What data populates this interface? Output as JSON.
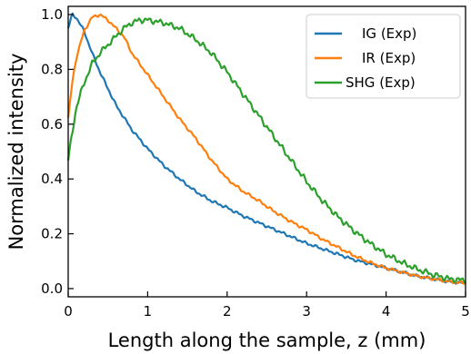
{
  "chart_data": {
    "type": "line",
    "title": "",
    "xlabel": "Length along the sample, z (mm)",
    "ylabel": "Normalized intensity",
    "xlim": [
      0,
      5
    ],
    "ylim": [
      -0.03,
      1.03
    ],
    "xticks": [
      0,
      1,
      2,
      3,
      4,
      5
    ],
    "xtick_labels": [
      "0",
      "1",
      "2",
      "3",
      "4",
      "5"
    ],
    "yticks": [
      0.0,
      0.2,
      0.4,
      0.6,
      0.8,
      1.0
    ],
    "ytick_labels": [
      "0.0",
      "0.2",
      "0.4",
      "0.6",
      "0.8",
      "1.0"
    ],
    "grid": false,
    "legend": "top-right",
    "series": [
      {
        "name": "IG (Exp)",
        "color": "#1f77b4",
        "x": [
          0,
          0.05,
          0.1,
          0.2,
          0.3,
          0.4,
          0.5,
          0.6,
          0.8,
          1.0,
          1.2,
          1.4,
          1.6,
          1.8,
          2.0,
          2.2,
          2.4,
          2.6,
          2.8,
          3.0,
          3.2,
          3.4,
          3.6,
          3.8,
          4.0,
          4.2,
          4.4,
          4.6,
          4.8,
          5.0
        ],
        "y": [
          0.95,
          1.0,
          0.99,
          0.94,
          0.86,
          0.79,
          0.73,
          0.67,
          0.58,
          0.51,
          0.45,
          0.4,
          0.355,
          0.32,
          0.295,
          0.265,
          0.24,
          0.215,
          0.19,
          0.165,
          0.145,
          0.125,
          0.105,
          0.09,
          0.075,
          0.06,
          0.045,
          0.035,
          0.025,
          0.02
        ]
      },
      {
        "name": "IR (Exp)",
        "color": "#ff7f0e",
        "x": [
          0,
          0.05,
          0.1,
          0.2,
          0.3,
          0.4,
          0.5,
          0.6,
          0.7,
          0.8,
          1.0,
          1.2,
          1.4,
          1.6,
          1.8,
          2.0,
          2.2,
          2.4,
          2.6,
          2.8,
          3.0,
          3.2,
          3.4,
          3.6,
          3.8,
          4.0,
          4.2,
          4.4,
          4.6,
          4.8,
          5.0
        ],
        "y": [
          0.62,
          0.75,
          0.84,
          0.94,
          0.99,
          1.0,
          0.98,
          0.95,
          0.92,
          0.86,
          0.78,
          0.7,
          0.62,
          0.55,
          0.47,
          0.4,
          0.355,
          0.32,
          0.28,
          0.245,
          0.215,
          0.18,
          0.15,
          0.12,
          0.095,
          0.075,
          0.06,
          0.045,
          0.035,
          0.025,
          0.02
        ]
      },
      {
        "name": "SHG (Exp)",
        "color": "#2ca02c",
        "x": [
          0,
          0.1,
          0.2,
          0.3,
          0.4,
          0.5,
          0.6,
          0.7,
          0.8,
          0.9,
          1.0,
          1.2,
          1.4,
          1.6,
          1.8,
          2.0,
          2.2,
          2.4,
          2.6,
          2.8,
          3.0,
          3.2,
          3.4,
          3.6,
          3.8,
          4.0,
          4.2,
          4.4,
          4.6,
          4.8,
          5.0
        ],
        "y": [
          0.47,
          0.66,
          0.75,
          0.82,
          0.86,
          0.89,
          0.92,
          0.95,
          0.97,
          0.98,
          0.98,
          0.97,
          0.95,
          0.91,
          0.86,
          0.79,
          0.71,
          0.63,
          0.55,
          0.47,
          0.39,
          0.32,
          0.26,
          0.21,
          0.165,
          0.125,
          0.095,
          0.07,
          0.05,
          0.035,
          0.03
        ]
      }
    ]
  }
}
